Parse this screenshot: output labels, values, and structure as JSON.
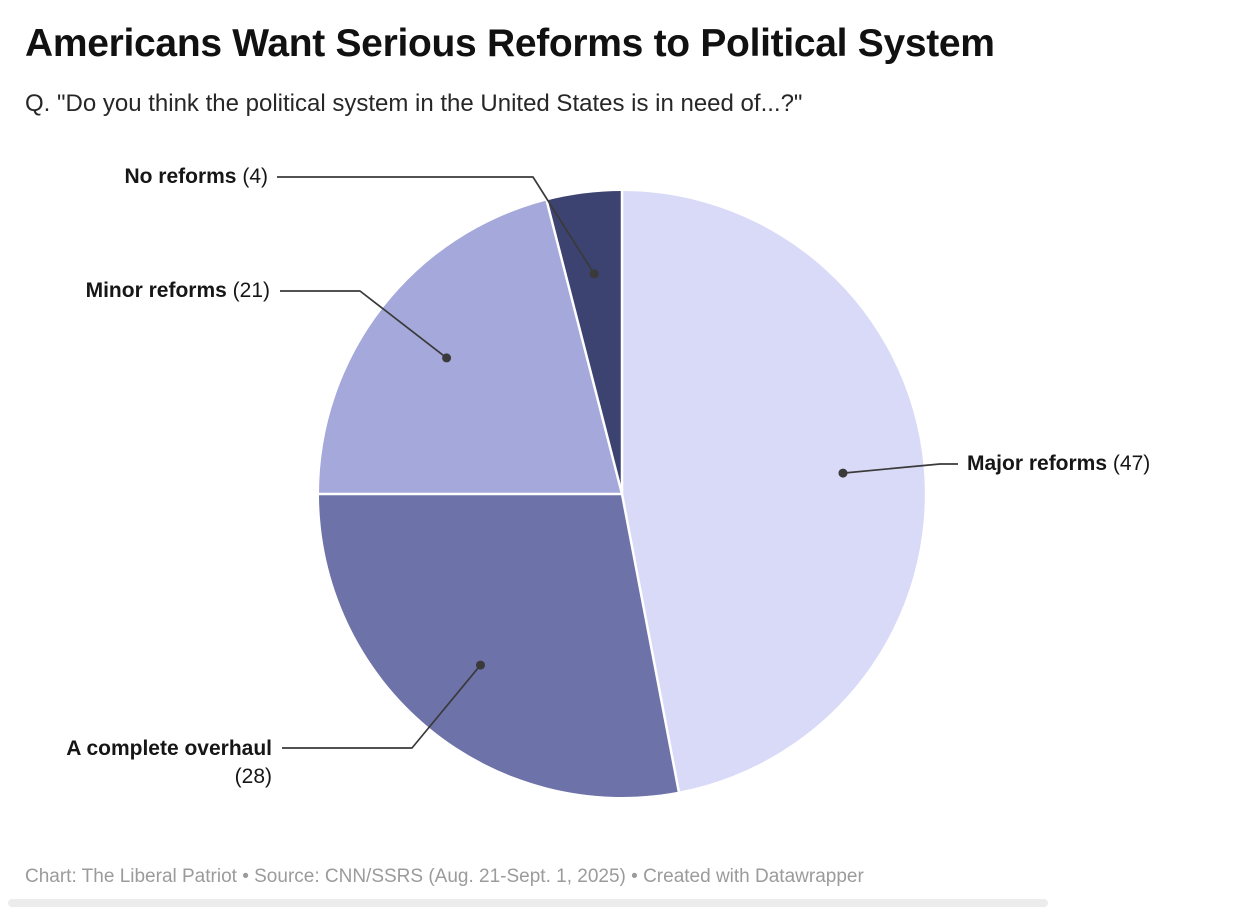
{
  "header": {
    "title": "Americans Want Serious Reforms to Political System",
    "subtitle": "Q. \"Do you think the political system in the United States is in need of...?\""
  },
  "chart_data": {
    "type": "pie",
    "title": "Americans Want Serious Reforms to Political System",
    "question": "Q. \"Do you think the political system in the United States is in need of...?\"",
    "units": "percent of respondents",
    "start_angle_deg": 0,
    "direction": "clockwise",
    "total": 100,
    "slices": [
      {
        "label": "Major reforms",
        "value": 47,
        "value_text": "(47)",
        "color": "#d9daf8"
      },
      {
        "label": "A complete overhaul",
        "value": 28,
        "value_text": "(28)",
        "color": "#6d72a8"
      },
      {
        "label": "Minor reforms",
        "value": 21,
        "value_text": "(21)",
        "color": "#a5a8da"
      },
      {
        "label": "No reforms",
        "value": 4,
        "value_text": "(4)",
        "color": "#3d4370"
      }
    ],
    "separator_color": "#ffffff",
    "connector_color": "#3a3a3a",
    "legend_position": "callout-labels"
  },
  "footer": {
    "text": "Chart: The Liberal Patriot • Source: CNN/SSRS (Aug. 21-Sept. 1, 2025) • Created with Datawrapper"
  }
}
